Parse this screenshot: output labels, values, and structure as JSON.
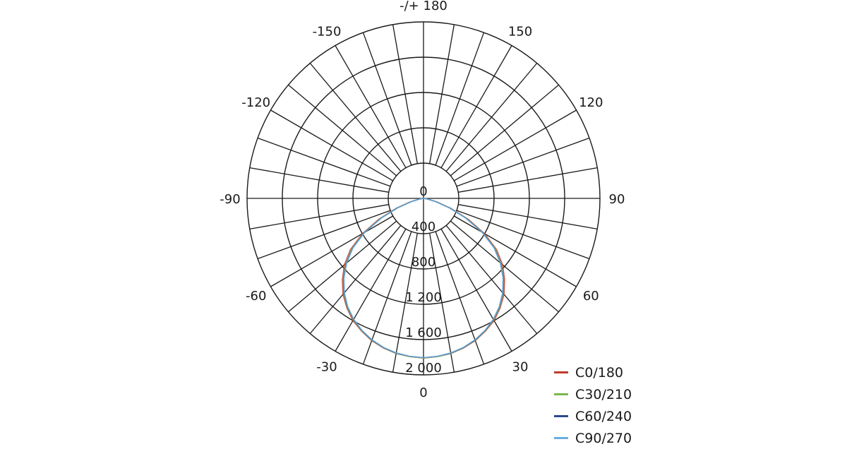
{
  "chart_data": {
    "type": "polar",
    "radial_axis": {
      "range": [
        0,
        2000
      ],
      "ticks": [
        0,
        400,
        800,
        1200,
        1600,
        2000
      ],
      "tick_labels": [
        "0",
        "400",
        "800",
        "1 200",
        "1 600",
        "2 000"
      ]
    },
    "angular_axis": {
      "spoke_step_deg": 10,
      "zero_direction": "bottom",
      "tick_labels": [
        {
          "angle": 0,
          "text": "0"
        },
        {
          "angle": 30,
          "text": "30"
        },
        {
          "angle": 60,
          "text": "60"
        },
        {
          "angle": 90,
          "text": "90"
        },
        {
          "angle": 120,
          "text": "120"
        },
        {
          "angle": 150,
          "text": "150"
        },
        {
          "angle": 180,
          "text": "-/+ 180"
        },
        {
          "angle": -150,
          "text": "-150"
        },
        {
          "angle": -120,
          "text": "-120"
        },
        {
          "angle": -90,
          "text": "-90"
        },
        {
          "angle": -60,
          "text": "-60"
        },
        {
          "angle": -30,
          "text": "-30"
        }
      ]
    },
    "grid": true,
    "legend_placement": "bottom-right",
    "angles": [
      0,
      5,
      10,
      15,
      20,
      25,
      30,
      35,
      40,
      45,
      50,
      55,
      60,
      65,
      70,
      75,
      80,
      85,
      90
    ],
    "series": [
      {
        "name": "C0/180",
        "color": "#c0392b",
        "values": [
          1810,
          1800,
          1785,
          1755,
          1715,
          1660,
          1600,
          1515,
          1420,
          1300,
          1170,
          1010,
          800,
          560,
          330,
          160,
          60,
          15,
          0
        ]
      },
      {
        "name": "C30/210",
        "color": "#7cb84a",
        "values": [
          1810,
          1800,
          1783,
          1752,
          1710,
          1655,
          1590,
          1505,
          1405,
          1285,
          1150,
          990,
          780,
          540,
          320,
          150,
          55,
          12,
          0
        ]
      },
      {
        "name": "C60/240",
        "color": "#2b4a8a",
        "values": [
          1805,
          1797,
          1780,
          1750,
          1708,
          1652,
          1585,
          1500,
          1400,
          1280,
          1140,
          980,
          770,
          530,
          310,
          145,
          50,
          10,
          0
        ]
      },
      {
        "name": "C90/270",
        "color": "#6aaee0",
        "values": [
          1805,
          1796,
          1778,
          1748,
          1705,
          1650,
          1582,
          1497,
          1395,
          1275,
          1135,
          975,
          765,
          525,
          305,
          140,
          50,
          10,
          0
        ]
      }
    ]
  }
}
